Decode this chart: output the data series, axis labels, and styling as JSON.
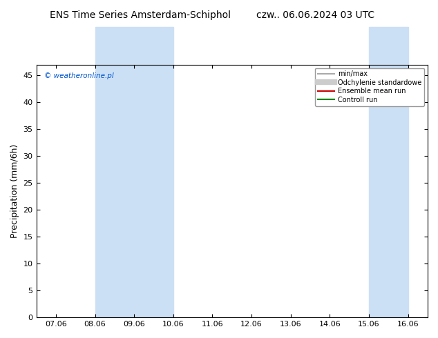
{
  "title_left": "ENS Time Series Amsterdam-Schiphol",
  "title_right": "czw.. 06.06.2024 03 UTC",
  "ylabel": "Precipitation (mm/6h)",
  "ylim": [
    0,
    47
  ],
  "yticks": [
    0,
    5,
    10,
    15,
    20,
    25,
    30,
    35,
    40,
    45
  ],
  "xtick_labels": [
    "07.06",
    "08.06",
    "09.06",
    "10.06",
    "11.06",
    "12.06",
    "13.06",
    "14.06",
    "15.06",
    "16.06"
  ],
  "shaded_bands": [
    {
      "xmin": 1,
      "xmax": 3,
      "color": "#cce0f5"
    },
    {
      "xmin": 8,
      "xmax": 9,
      "color": "#cce0f5"
    }
  ],
  "watermark": "© weatheronline.pl",
  "legend_entries": [
    {
      "label": "min/max",
      "color": "#aaaaaa",
      "lw": 1.5,
      "style": "-"
    },
    {
      "label": "Odchylenie standardowe",
      "color": "#cccccc",
      "lw": 6,
      "style": "-"
    },
    {
      "label": "Ensemble mean run",
      "color": "#cc0000",
      "lw": 1.5,
      "style": "-"
    },
    {
      "label": "Controll run",
      "color": "#008800",
      "lw": 1.5,
      "style": "-"
    }
  ],
  "bg_color": "#ffffff",
  "plot_bg_color": "#ffffff",
  "spine_color": "#000000",
  "title_fontsize": 10,
  "axis_label_fontsize": 9,
  "tick_fontsize": 8,
  "n_xpoints": 10
}
